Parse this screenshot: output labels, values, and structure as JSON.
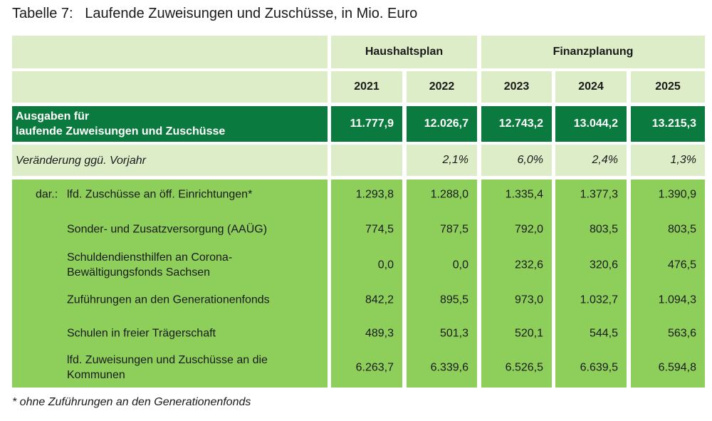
{
  "title": "Tabelle 7:   Laufende Zuweisungen und Zuschüsse, in Mio. Euro",
  "header": {
    "group_1": "Haushaltsplan",
    "group_2": "Finanzplanung",
    "years": [
      "2021",
      "2022",
      "2023",
      "2024",
      "2025"
    ]
  },
  "total_row": {
    "label_line1": "Ausgaben für",
    "label_line2": "laufende Zuweisungen und Zuschüsse",
    "values": [
      "11.777,9",
      "12.026,7",
      "12.743,2",
      "13.044,2",
      "13.215,3"
    ]
  },
  "change_row": {
    "label": "Veränderung ggü. Vorjahr",
    "values": [
      "",
      "2,1%",
      "6,0%",
      "2,4%",
      "1,3%"
    ]
  },
  "body_rows": [
    {
      "prefix": "dar.:",
      "label": "lfd. Zuschüsse an öff. Einrichtungen*",
      "values": [
        "1.293,8",
        "1.288,0",
        "1.335,4",
        "1.377,3",
        "1.390,9"
      ]
    },
    {
      "prefix": "",
      "label": "Sonder- und Zusatzversorgung (AAÜG)",
      "values": [
        "774,5",
        "787,5",
        "792,0",
        "803,5",
        "803,5"
      ]
    },
    {
      "prefix": "",
      "label": "Schuldendiensthilfen an Corona-\nBewältigungsfonds Sachsen",
      "values": [
        "0,0",
        "0,0",
        "232,6",
        "320,6",
        "476,5"
      ]
    },
    {
      "prefix": "",
      "label": "Zuführungen an den Generationenfonds",
      "values": [
        "842,2",
        "895,5",
        "973,0",
        "1.032,7",
        "1.094,3"
      ]
    },
    {
      "prefix": "",
      "label": "Schulen in freier Trägerschaft",
      "values": [
        "489,3",
        "501,3",
        "520,1",
        "544,5",
        "563,6"
      ]
    },
    {
      "prefix": "",
      "label": "lfd. Zuweisungen und Zuschüsse an die\nKommunen",
      "values": [
        "6.263,7",
        "6.339,6",
        "6.526,5",
        "6.639,5",
        "6.594,8"
      ]
    }
  ],
  "footnote": "* ohne Zuführungen an den Generationenfonds",
  "colors": {
    "light": "#dcedc8",
    "dark": "#0b7a3e",
    "mid": "#8ecf5c"
  }
}
